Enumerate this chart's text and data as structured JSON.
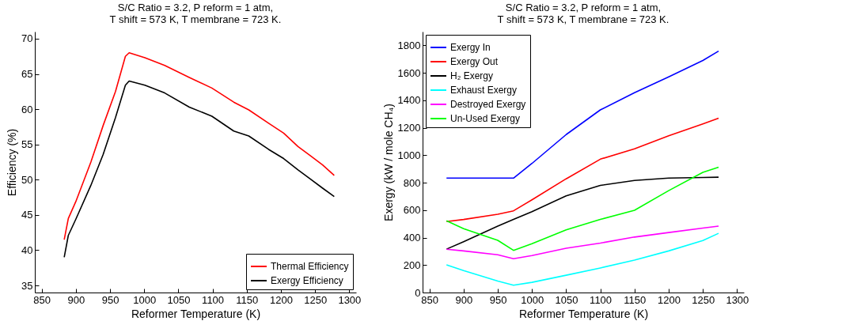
{
  "chart_data": [
    {
      "type": "line",
      "title": "S/C Ratio = 3.2,  P reform = 1 atm,",
      "subtitle": "T shift = 573 K,  T membrane = 723 K.",
      "xlabel": "Reformer Temperature (K)",
      "ylabel": "Efficiency (%)",
      "xlim": [
        840,
        1310
      ],
      "ylim": [
        34,
        71
      ],
      "xticks": [
        850,
        900,
        950,
        1000,
        1050,
        1100,
        1150,
        1200,
        1250,
        1300
      ],
      "yticks": [
        35,
        40,
        45,
        50,
        55,
        60,
        65,
        70
      ],
      "legend": "bottom right",
      "series": [
        {
          "name": "Thermal Efficiency",
          "color": "#ff0000",
          "x": [
            883,
            889,
            900,
            922,
            940,
            958,
            972.5,
            978,
            1001,
            1030,
            1066,
            1099,
            1131,
            1153,
            1182,
            1204,
            1225,
            1243,
            1261,
            1278
          ],
          "values": [
            41.5,
            44.5,
            46.9,
            52.5,
            57.7,
            62.5,
            67.5,
            68.0,
            67.3,
            66.2,
            64.5,
            63.0,
            61.0,
            59.9,
            58.0,
            56.6,
            54.7,
            53.4,
            52.1,
            50.6
          ]
        },
        {
          "name": "Exergy Efficiency",
          "color": "#000000",
          "x": [
            883,
            889,
            900,
            922,
            940,
            958,
            972.5,
            978,
            1001,
            1030,
            1066,
            1099,
            1131,
            1153,
            1182,
            1204,
            1225,
            1243,
            1261,
            1278
          ],
          "values": [
            39.0,
            42.1,
            44.4,
            49.2,
            53.6,
            58.8,
            63.4,
            64.0,
            63.4,
            62.3,
            60.3,
            59.0,
            56.9,
            56.2,
            54.3,
            53.0,
            51.4,
            50.1,
            48.8,
            47.6
          ]
        }
      ]
    },
    {
      "type": "line",
      "title": "S/C Ratio = 3.2,  P reform = 1 atm,",
      "subtitle": "T shift = 573 K,  T membrane = 723 K.",
      "xlabel": "Reformer Temperature (K)",
      "ylabel": "Exergy (kW / mole CH₄)",
      "xlim": [
        840,
        1310
      ],
      "ylim": [
        0,
        1900
      ],
      "xticks": [
        850,
        900,
        950,
        1000,
        1050,
        1100,
        1150,
        1200,
        1250,
        1300
      ],
      "yticks": [
        0,
        200,
        400,
        600,
        800,
        1000,
        1200,
        1400,
        1600,
        1800
      ],
      "legend": "top left",
      "x": [
        875,
        900,
        950,
        973,
        1000,
        1050,
        1100,
        1150,
        1200,
        1250,
        1273
      ],
      "series": [
        {
          "name": "Exergy In",
          "color": "#0000ff",
          "values": [
            833,
            833,
            833,
            833,
            940,
            1150,
            1330,
            1455,
            1570,
            1690,
            1758
          ]
        },
        {
          "name": "Exergy Out",
          "color": "#ff0000",
          "values": [
            517,
            532,
            570,
            595,
            675,
            828,
            971,
            1047,
            1142,
            1228,
            1270
          ]
        },
        {
          "name": "H₂ Exergy",
          "color": "#000000",
          "values": [
            316,
            370,
            484,
            532,
            589,
            704,
            780,
            816,
            833,
            838,
            840
          ]
        },
        {
          "name": "Exhaust Exergy",
          "color": "#00ffff",
          "values": [
            202,
            160,
            84,
            53,
            74,
            126,
            179,
            236,
            303,
            379,
            431
          ]
        },
        {
          "name": "Destroyed Exergy",
          "color": "#ff00ff",
          "values": [
            315,
            303,
            275,
            246,
            269,
            322,
            360,
            404,
            437,
            469,
            484
          ]
        },
        {
          "name": "Un-Used Exergy",
          "color": "#00ff00",
          "values": [
            522,
            465,
            380,
            307,
            355,
            456,
            532,
            599,
            742,
            875,
            913
          ]
        }
      ]
    }
  ]
}
